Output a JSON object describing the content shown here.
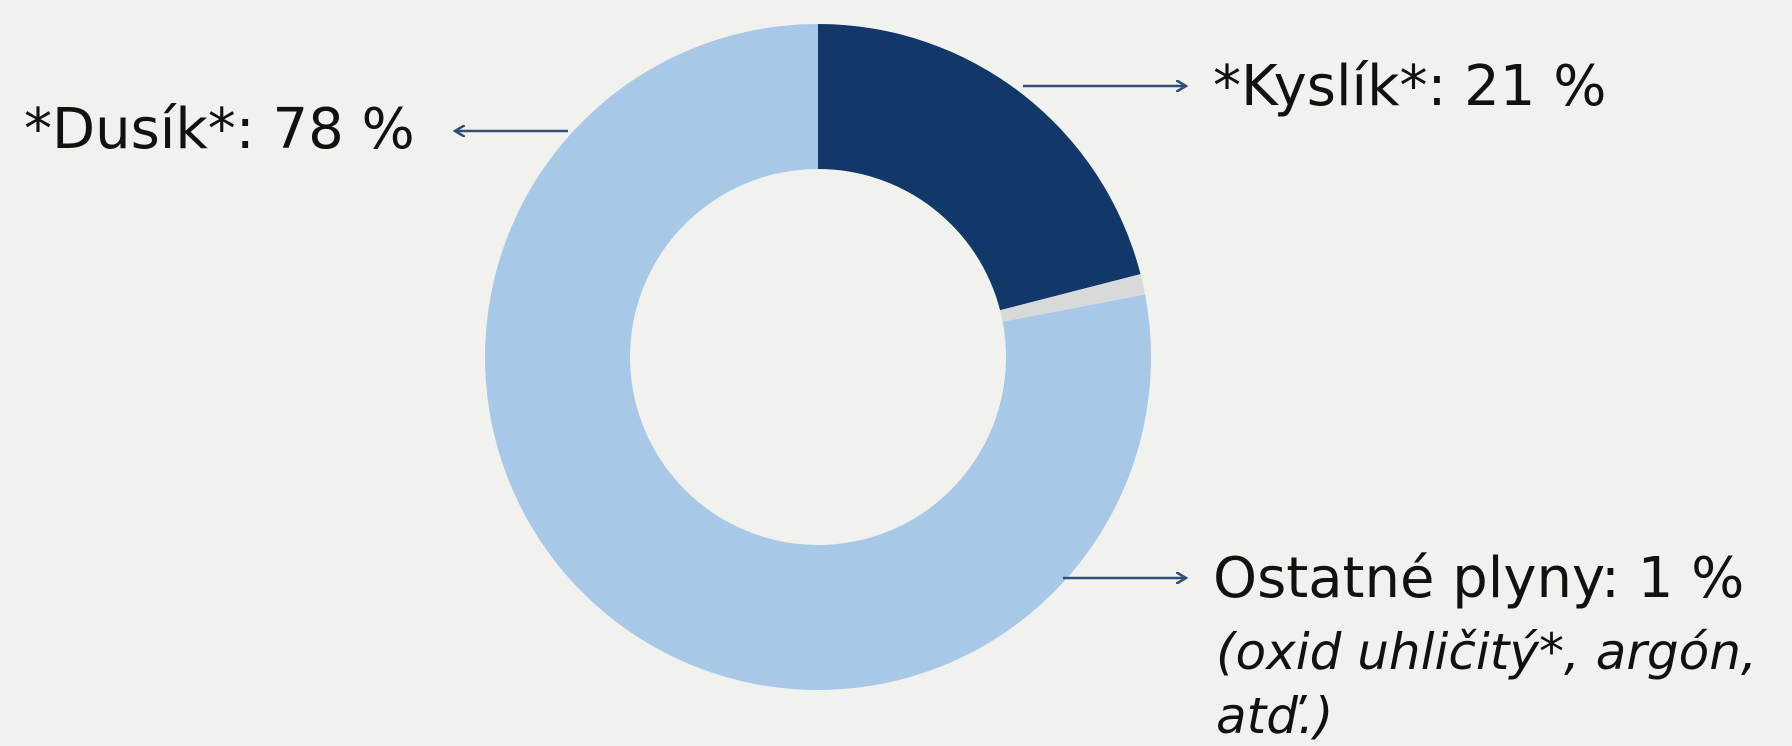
{
  "chart_data": {
    "type": "pie",
    "variant": "donut",
    "categories": [
      "*Dusík*",
      "*Kyslík*",
      "Ostatné plyny"
    ],
    "values": [
      78,
      21,
      1
    ],
    "unit": "%",
    "colors": {
      "*Dusík*": "#a8c8e8",
      "*Kyslík*": "#123769",
      "Ostatné plyny": "#d8d9d9"
    },
    "labels": {
      "dusik": "*Dusík*: 78 %",
      "kyslik": "*Kyslík*: 21 %",
      "ostatne": "Ostatné plyny: 1 %",
      "ostatne_note_line1": "(oxid uhličitý*, argón,",
      "ostatne_note_line2": "atď.)"
    },
    "title": "",
    "legend": "none",
    "annotation_arrow_color": "#2f4f7a",
    "background": "#f1f1ed"
  }
}
